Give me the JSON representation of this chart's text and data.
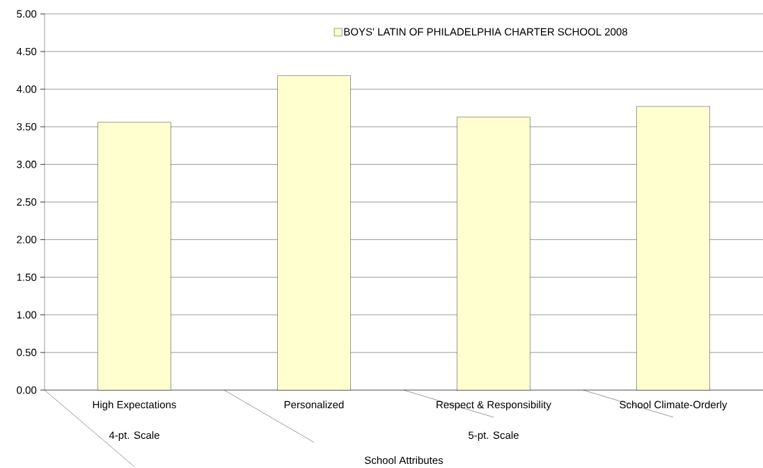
{
  "chart_data": {
    "type": "bar",
    "xlabel": "School Attributes",
    "categories": [
      "High Expectations",
      "Personalized",
      "Respect & Responsibility",
      "School Climate-Orderly"
    ],
    "series": [
      {
        "name": "BOYS' LATIN OF PHILADELPHIA CHARTER SCHOOL 2008",
        "color": "#ffffd0",
        "values": [
          3.56,
          4.18,
          3.63,
          3.77
        ]
      }
    ],
    "annotations": [
      "4-pt. Scale",
      "5-pt. Scale"
    ],
    "ylim": [
      0,
      5
    ],
    "yticks": [
      {
        "value": 0,
        "label": "0.00"
      },
      {
        "value": 0.5,
        "label": "0.50"
      },
      {
        "value": 1,
        "label": "1.00"
      },
      {
        "value": 1.5,
        "label": "1.50"
      },
      {
        "value": 2,
        "label": "2.00"
      },
      {
        "value": 2.5,
        "label": "2.50"
      },
      {
        "value": 3,
        "label": "3.00"
      },
      {
        "value": 3.5,
        "label": "3.50"
      },
      {
        "value": 4,
        "label": "4.00"
      },
      {
        "value": 4.5,
        "label": "4.50"
      },
      {
        "value": 5,
        "label": "5.00"
      }
    ],
    "grid": "y",
    "legend": "top right"
  }
}
